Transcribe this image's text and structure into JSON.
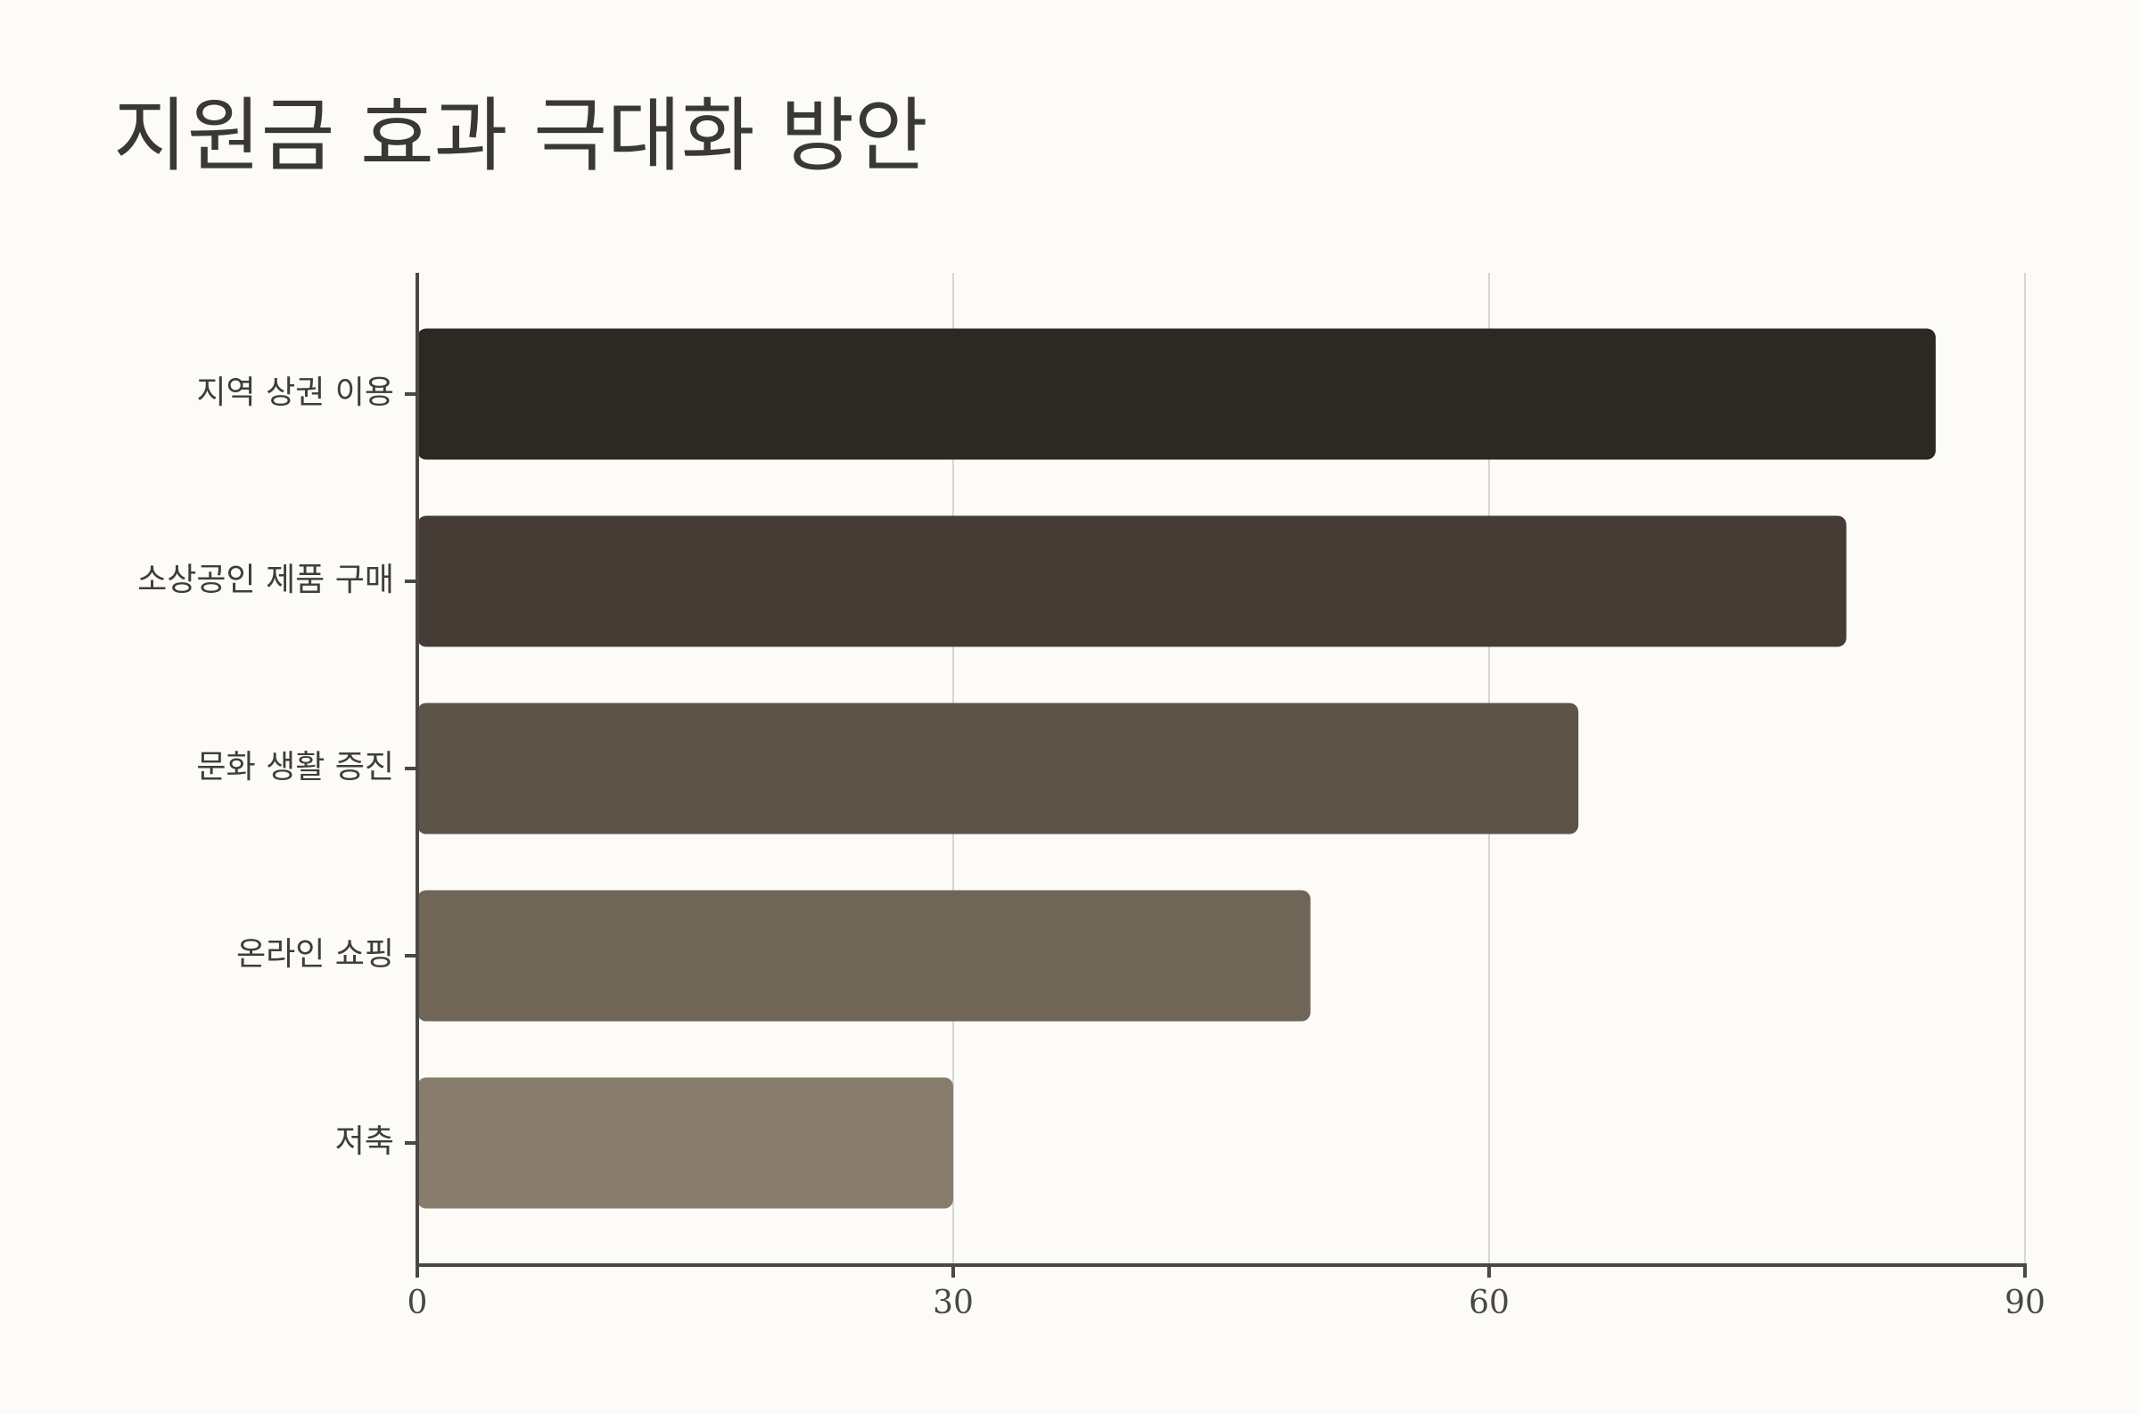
{
  "chart_data": {
    "type": "bar",
    "orientation": "horizontal",
    "title": "지원금 효과 극대화 방안",
    "categories": [
      "지역 상권 이용",
      "소상공인 제품 구매",
      "문화 생활 증진",
      "온라인 쇼핑",
      "저축"
    ],
    "values": [
      85,
      80,
      65,
      50,
      30
    ],
    "colors": [
      "#2c2822",
      "#453c35",
      "#5c5448",
      "#6f6658",
      "#887d6d"
    ],
    "xlim": [
      0,
      90
    ],
    "xticks": [
      0,
      30,
      60,
      90
    ],
    "grid": true
  }
}
